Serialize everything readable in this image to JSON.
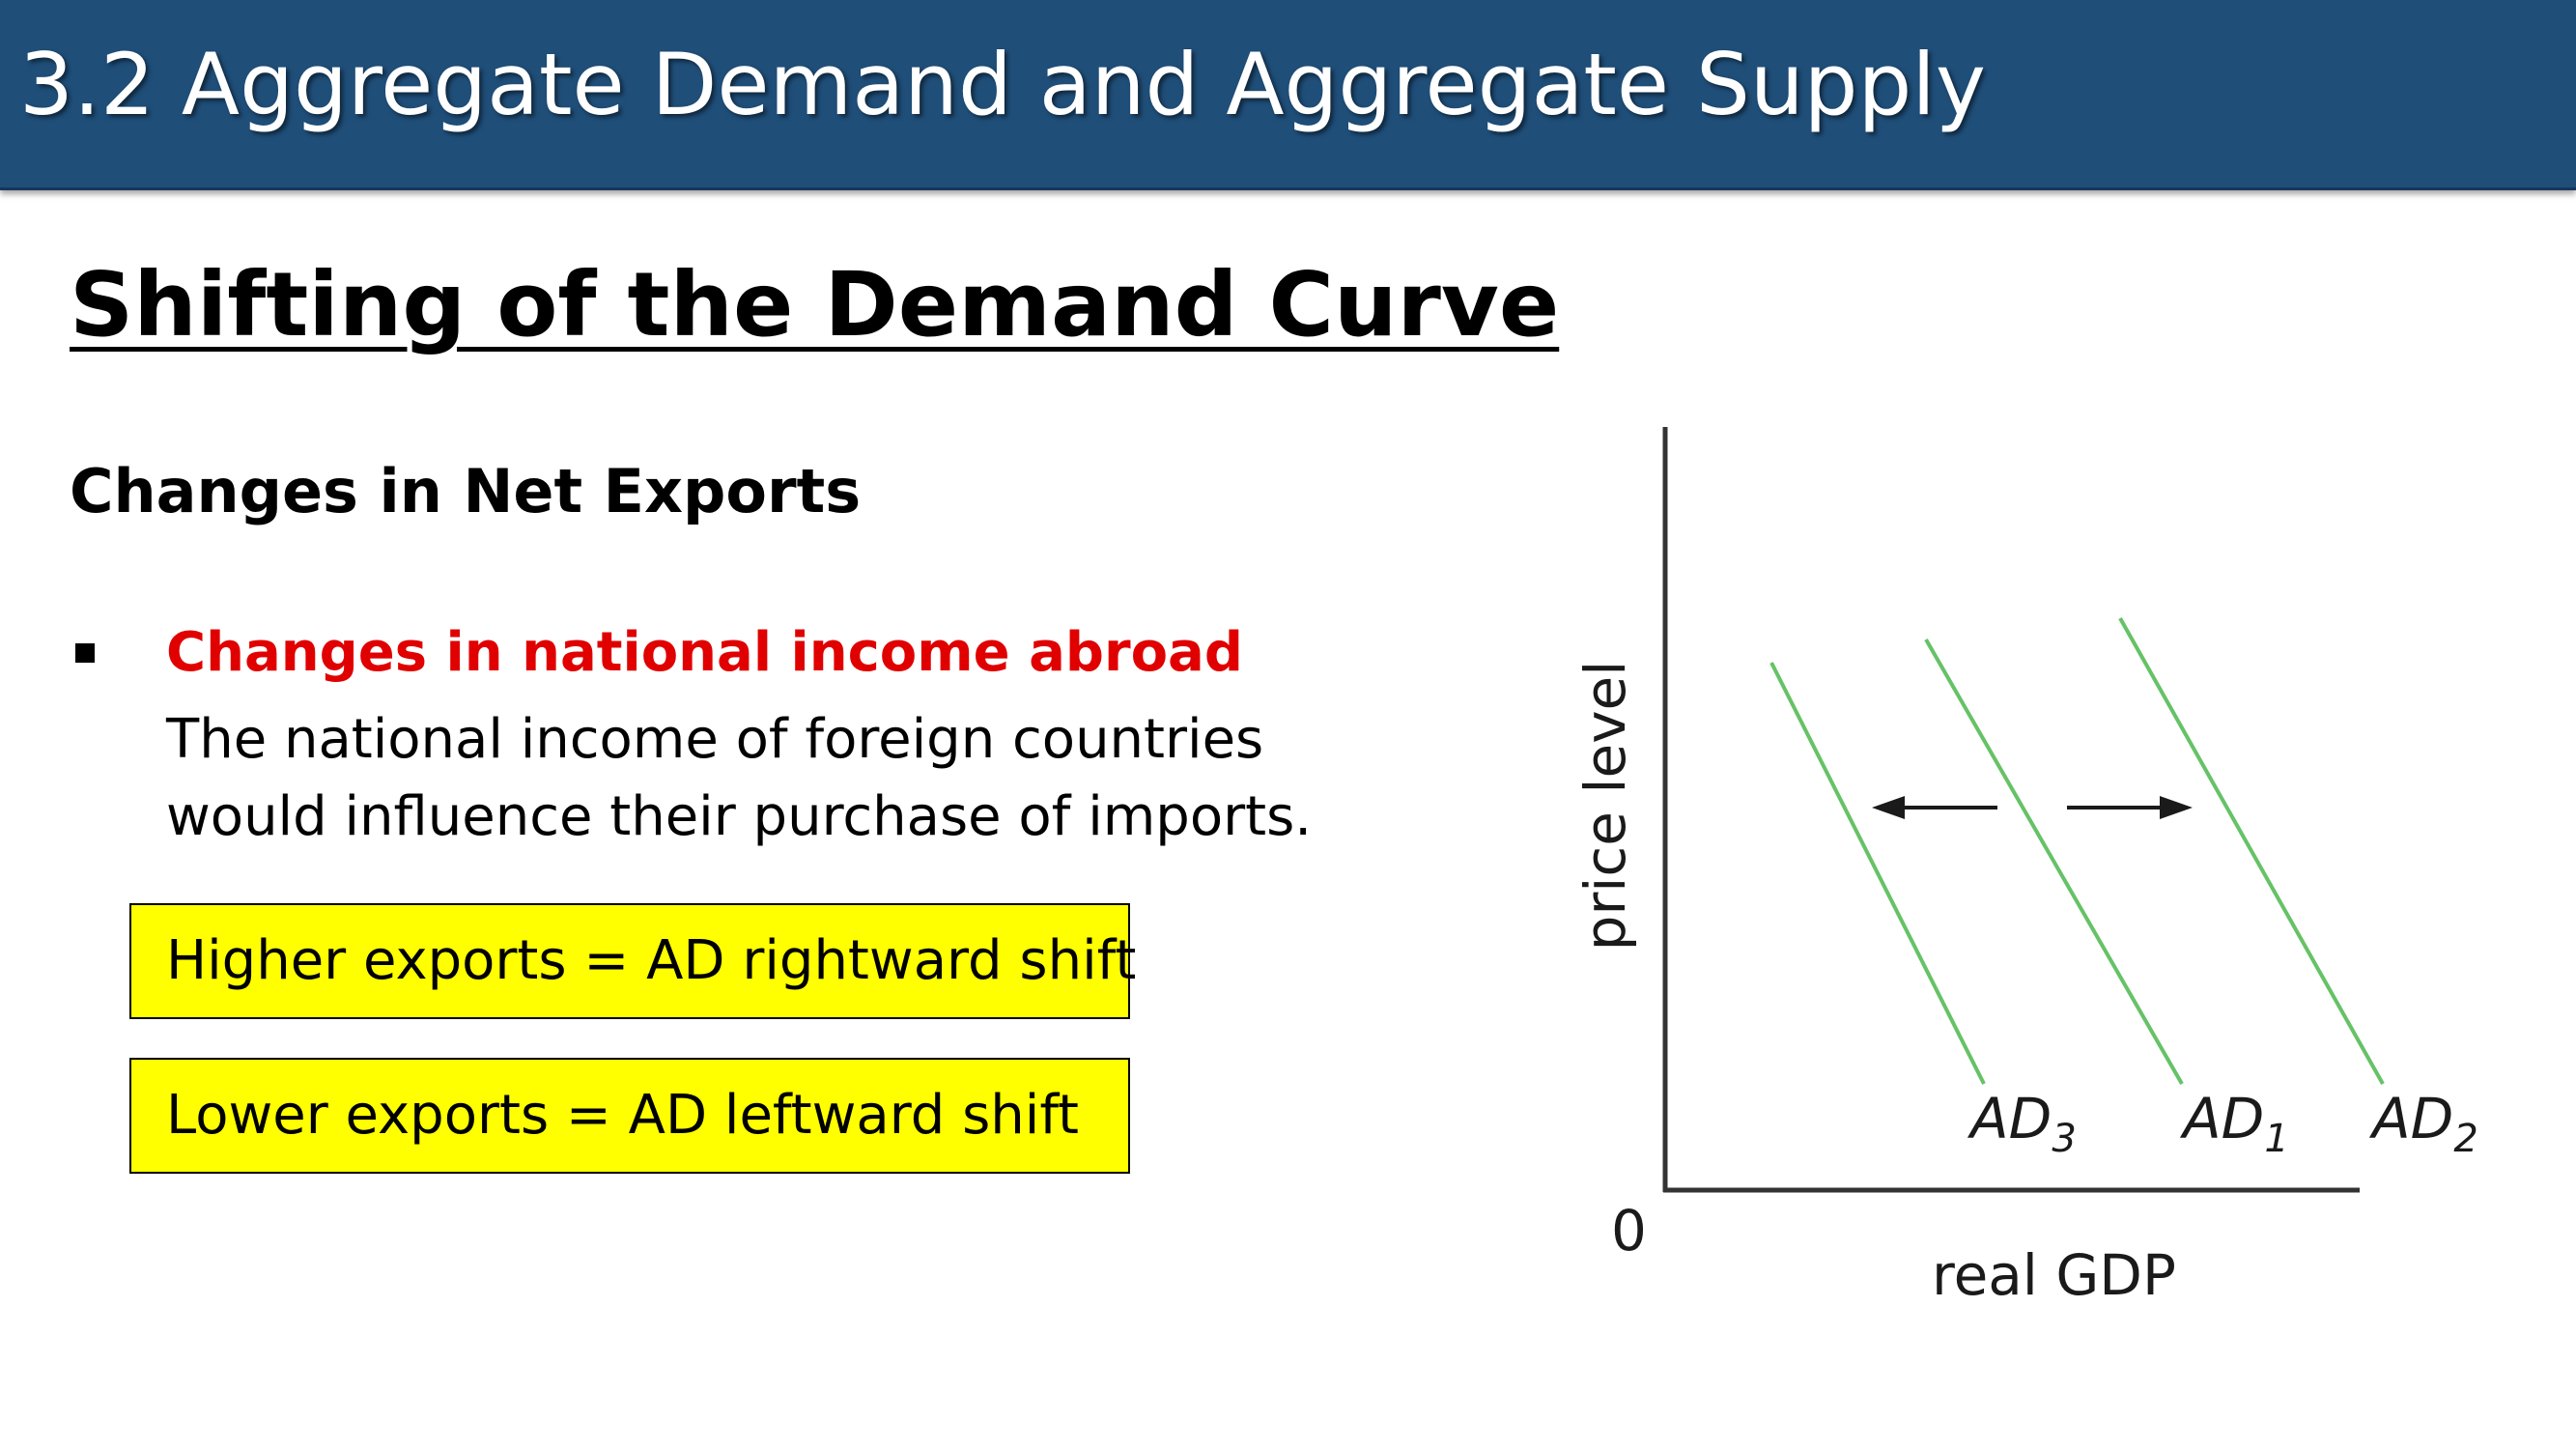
{
  "header": {
    "title": "3.2 Aggregate Demand and Aggregate Supply"
  },
  "heading": "Shifting of the Demand Curve",
  "subheading": "Changes in Net Exports",
  "bullet": {
    "title": "Changes in national income abroad",
    "lines": [
      "The national income of foreign countries",
      "would influence their purchase of imports."
    ]
  },
  "callouts": [
    "Higher exports = AD rightward shift",
    "Lower exports = AD leftward shift"
  ],
  "graph": {
    "y_axis_label": "price level",
    "x_axis_label": "real GDP",
    "origin_label": "0",
    "curves": [
      {
        "main": "AD",
        "sub": "3"
      },
      {
        "main": "AD",
        "sub": "1"
      },
      {
        "main": "AD",
        "sub": "2"
      }
    ],
    "curve_color": "#66c266",
    "axis_color": "#333333",
    "arrows": [
      "left",
      "right"
    ]
  }
}
